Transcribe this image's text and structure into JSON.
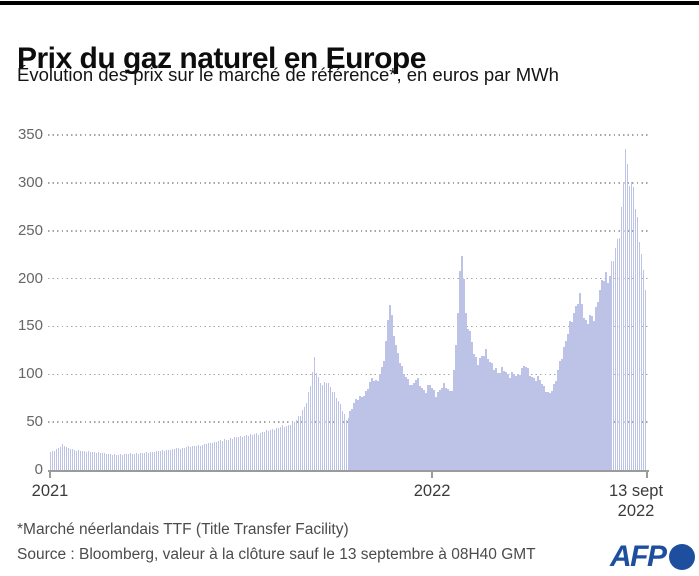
{
  "header": {
    "title": "Prix du gaz naturel en Europe",
    "subtitle": "Évolution des prix sur le marché de référence*, en euros par MWh"
  },
  "footer": {
    "note": "*Marché néerlandais TTF (Title Transfer Facility)",
    "source": "Source : Bloomberg, valeur à la clôture sauf le 13 septembre à 08H40 GMT",
    "logo_text": "AFP"
  },
  "colors": {
    "bar": "#bcc3e6",
    "grid": "#a5a5a5",
    "axis_line": "#9b9b9b",
    "y_label": "#666666",
    "x_label": "#3b3b3b",
    "footer_text": "#4b4b4b",
    "afp_blue": "#1e4f9f",
    "top_rule": "#000000"
  },
  "chart_data": {
    "type": "bar",
    "title": "Prix du gaz naturel en Europe",
    "subtitle": "Évolution des prix sur le marché de référence*, en euros par MWh",
    "unit": "euros par MWh",
    "ylabel": "",
    "xlabel": "",
    "ylim": [
      0,
      350
    ],
    "y_ticks": [
      0,
      50,
      100,
      150,
      200,
      250,
      300,
      350
    ],
    "grid": true,
    "x_ticks": [
      {
        "pos": 0.0,
        "label": "2021"
      },
      {
        "pos": 0.64,
        "label": "2022"
      },
      {
        "pos": 1.0,
        "label": "13 sept",
        "label2": "2022"
      }
    ],
    "notable_points": {
      "oct_2021_spike": 116,
      "dec_2021_spike": 180,
      "mar_2022_peak": 227,
      "aug_2022_peak": 341,
      "value_13_sept_2022": 190
    },
    "series": [
      {
        "name": "Prix du gaz TTF (euros par MWh)",
        "x_is_fraction_of_axis": true,
        "points": [
          [
            0.0,
            19
          ],
          [
            0.01,
            21
          ],
          [
            0.02,
            27
          ],
          [
            0.032,
            22
          ],
          [
            0.05,
            20
          ],
          [
            0.08,
            18
          ],
          [
            0.11,
            16
          ],
          [
            0.14,
            17
          ],
          [
            0.17,
            19
          ],
          [
            0.2,
            21
          ],
          [
            0.23,
            24
          ],
          [
            0.26,
            27
          ],
          [
            0.29,
            31
          ],
          [
            0.318,
            35
          ],
          [
            0.34,
            37
          ],
          [
            0.36,
            40
          ],
          [
            0.38,
            44
          ],
          [
            0.395,
            46
          ],
          [
            0.41,
            50
          ],
          [
            0.42,
            58
          ],
          [
            0.43,
            72
          ],
          [
            0.437,
            90
          ],
          [
            0.443,
            116
          ],
          [
            0.448,
            98
          ],
          [
            0.452,
            94
          ],
          [
            0.458,
            88
          ],
          [
            0.464,
            92
          ],
          [
            0.47,
            86
          ],
          [
            0.478,
            80
          ],
          [
            0.49,
            62
          ],
          [
            0.497,
            52
          ],
          [
            0.505,
            63
          ],
          [
            0.512,
            72
          ],
          [
            0.52,
            76
          ],
          [
            0.528,
            79
          ],
          [
            0.535,
            88
          ],
          [
            0.541,
            95
          ],
          [
            0.548,
            92
          ],
          [
            0.553,
            100
          ],
          [
            0.558,
            108
          ],
          [
            0.562,
            122
          ],
          [
            0.566,
            142
          ],
          [
            0.569,
            180
          ],
          [
            0.572,
            168
          ],
          [
            0.576,
            150
          ],
          [
            0.58,
            132
          ],
          [
            0.585,
            118
          ],
          [
            0.592,
            102
          ],
          [
            0.6,
            95
          ],
          [
            0.608,
            88
          ],
          [
            0.615,
            95
          ],
          [
            0.622,
            88
          ],
          [
            0.63,
            82
          ],
          [
            0.636,
            90
          ],
          [
            0.642,
            84
          ],
          [
            0.648,
            78
          ],
          [
            0.654,
            84
          ],
          [
            0.66,
            90
          ],
          [
            0.666,
            85
          ],
          [
            0.672,
            80
          ],
          [
            0.676,
            88
          ],
          [
            0.681,
            130
          ],
          [
            0.684,
            160
          ],
          [
            0.687,
            195
          ],
          [
            0.691,
            227
          ],
          [
            0.694,
            205
          ],
          [
            0.697,
            165
          ],
          [
            0.702,
            150
          ],
          [
            0.707,
            140
          ],
          [
            0.712,
            120
          ],
          [
            0.717,
            110
          ],
          [
            0.724,
            118
          ],
          [
            0.731,
            126
          ],
          [
            0.737,
            114
          ],
          [
            0.744,
            106
          ],
          [
            0.753,
            102
          ],
          [
            0.76,
            108
          ],
          [
            0.766,
            100
          ],
          [
            0.772,
            97
          ],
          [
            0.778,
            103
          ],
          [
            0.784,
            98
          ],
          [
            0.792,
            104
          ],
          [
            0.798,
            110
          ],
          [
            0.803,
            104
          ],
          [
            0.808,
            98
          ],
          [
            0.814,
            94
          ],
          [
            0.82,
            96
          ],
          [
            0.826,
            90
          ],
          [
            0.832,
            84
          ],
          [
            0.838,
            79
          ],
          [
            0.843,
            84
          ],
          [
            0.848,
            90
          ],
          [
            0.853,
            108
          ],
          [
            0.858,
            118
          ],
          [
            0.863,
            128
          ],
          [
            0.868,
            140
          ],
          [
            0.873,
            152
          ],
          [
            0.878,
            162
          ],
          [
            0.883,
            172
          ],
          [
            0.888,
            184
          ],
          [
            0.892,
            176
          ],
          [
            0.896,
            158
          ],
          [
            0.9,
            152
          ],
          [
            0.904,
            158
          ],
          [
            0.908,
            165
          ],
          [
            0.912,
            158
          ],
          [
            0.916,
            166
          ],
          [
            0.92,
            178
          ],
          [
            0.924,
            190
          ],
          [
            0.928,
            200
          ],
          [
            0.932,
            208
          ],
          [
            0.936,
            198
          ],
          [
            0.94,
            206
          ],
          [
            0.944,
            214
          ],
          [
            0.948,
            224
          ],
          [
            0.952,
            236
          ],
          [
            0.957,
            252
          ],
          [
            0.962,
            290
          ],
          [
            0.967,
            341
          ],
          [
            0.97,
            318
          ],
          [
            0.974,
            295
          ],
          [
            0.978,
            305
          ],
          [
            0.982,
            288
          ],
          [
            0.986,
            265
          ],
          [
            0.99,
            242
          ],
          [
            0.994,
            220
          ],
          [
            0.997,
            202
          ],
          [
            1.0,
            190
          ]
        ]
      }
    ],
    "n_bars_rendered": 299
  }
}
